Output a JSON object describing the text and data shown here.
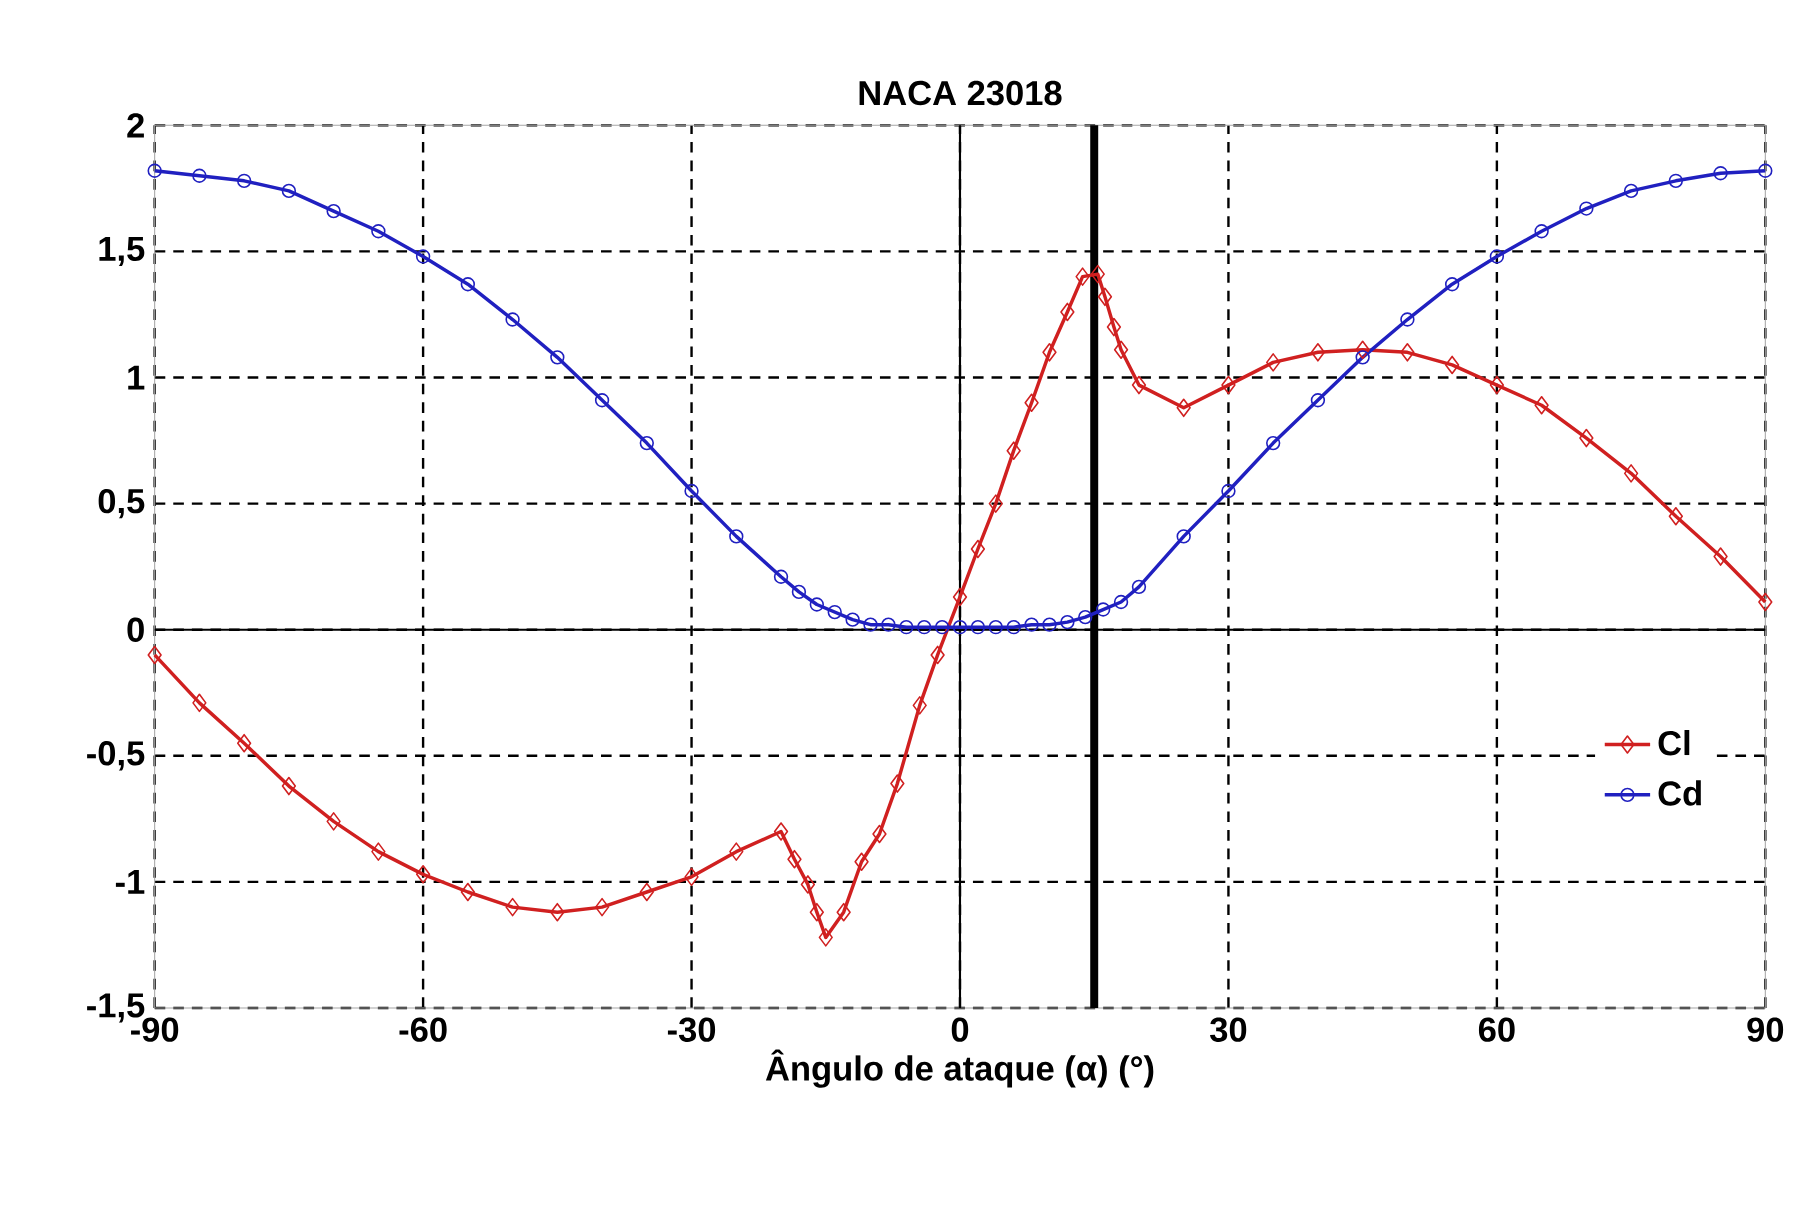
{
  "chart_data": {
    "type": "line",
    "title": "NACA 23018",
    "xlabel": "Ângulo de ataque (α) (°)",
    "xlim": [
      -90,
      90
    ],
    "xticks": [
      -90,
      -60,
      -30,
      0,
      30,
      60,
      90
    ],
    "ylim": [
      -1.5,
      2
    ],
    "yticks": [
      {
        "value": -1.5,
        "label": "-1,5"
      },
      -1,
      {
        "value": -0.5,
        "label": "-0,5"
      },
      0,
      {
        "value": 0.5,
        "label": "0,5"
      },
      1,
      {
        "value": 1.5,
        "label": "1,5"
      },
      2
    ],
    "grid": true,
    "legend": "right",
    "line_style": "solid",
    "ref_lines": [
      {
        "axis": "x",
        "value": 15,
        "color": "#000000"
      }
    ],
    "series": [
      {
        "name": "Cl",
        "color": "#d02020",
        "marker": "diamond",
        "x": [
          -90,
          -85,
          -80,
          -75,
          -70,
          -65,
          -60,
          -55,
          -50,
          -45,
          -40,
          -35,
          -30,
          -25,
          -20,
          -18.5,
          -17,
          -16,
          -15,
          -13,
          -11,
          -9,
          -7,
          -4.5,
          -2.5,
          0,
          2,
          4,
          6,
          8,
          10,
          12,
          13.7,
          15.4,
          16.2,
          17.2,
          18,
          20,
          25,
          30,
          35,
          40,
          45,
          50,
          55,
          60,
          65,
          70,
          75,
          80,
          85,
          90
        ],
        "values": [
          -0.1,
          -0.29,
          -0.45,
          -0.62,
          -0.76,
          -0.88,
          -0.97,
          -1.04,
          -1.1,
          -1.12,
          -1.1,
          -1.04,
          -0.98,
          -0.88,
          -0.8,
          -0.91,
          -1.01,
          -1.12,
          -1.22,
          -1.12,
          -0.92,
          -0.81,
          -0.61,
          -0.3,
          -0.1,
          0.13,
          0.32,
          0.5,
          0.71,
          0.9,
          1.1,
          1.26,
          1.4,
          1.41,
          1.32,
          1.2,
          1.11,
          0.97,
          0.88,
          0.97,
          1.06,
          1.1,
          1.11,
          1.1,
          1.05,
          0.97,
          0.89,
          0.76,
          0.62,
          0.45,
          0.29,
          0.11
        ]
      },
      {
        "name": "Cd",
        "color": "#2020c0",
        "marker": "circle",
        "x": [
          -90,
          -85,
          -80,
          -75,
          -70,
          -65,
          -60,
          -55,
          -50,
          -45,
          -40,
          -35,
          -30,
          -25,
          -20,
          -18,
          -16,
          -14,
          -12,
          -10,
          -8,
          -6,
          -4,
          -2,
          0,
          2,
          4,
          6,
          8,
          10,
          12,
          14,
          16,
          18,
          20,
          25,
          30,
          35,
          40,
          45,
          50,
          55,
          60,
          65,
          70,
          75,
          80,
          85,
          90
        ],
        "values": [
          1.82,
          1.8,
          1.78,
          1.74,
          1.66,
          1.58,
          1.48,
          1.37,
          1.23,
          1.08,
          0.91,
          0.74,
          0.55,
          0.37,
          0.21,
          0.15,
          0.1,
          0.07,
          0.04,
          0.02,
          0.02,
          0.01,
          0.01,
          0.01,
          0.01,
          0.01,
          0.01,
          0.01,
          0.02,
          0.02,
          0.03,
          0.05,
          0.08,
          0.11,
          0.17,
          0.37,
          0.55,
          0.74,
          0.91,
          1.08,
          1.23,
          1.37,
          1.48,
          1.58,
          1.67,
          1.74,
          1.78,
          1.81,
          1.82
        ]
      }
    ]
  }
}
